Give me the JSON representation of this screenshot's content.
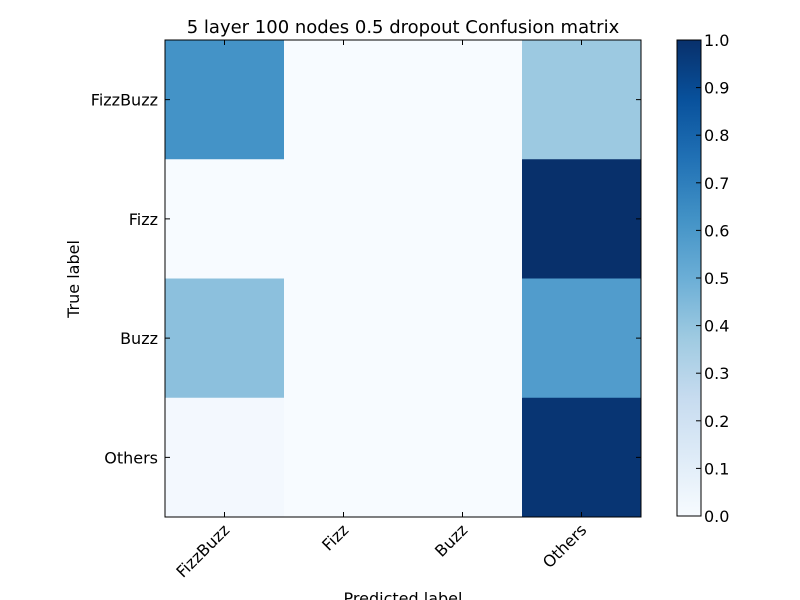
{
  "chart_data": {
    "type": "heatmap",
    "title": "5 layer 100 nodes 0.5 dropout Confusion matrix",
    "xlabel": "Predicted label",
    "ylabel": "True label",
    "x_categories": [
      "FizzBuzz",
      "Fizz",
      "Buzz",
      "Others"
    ],
    "y_categories": [
      "FizzBuzz",
      "Fizz",
      "Buzz",
      "Others"
    ],
    "values": [
      [
        0.62,
        0.0,
        0.0,
        0.38
      ],
      [
        0.0,
        0.0,
        0.0,
        1.0
      ],
      [
        0.42,
        0.0,
        0.0,
        0.58
      ],
      [
        0.02,
        0.0,
        0.0,
        0.98
      ]
    ],
    "colormap": "Blues",
    "colorbar": {
      "range": [
        0.0,
        1.0
      ],
      "ticks": [
        "0.0",
        "0.1",
        "0.2",
        "0.3",
        "0.4",
        "0.5",
        "0.6",
        "0.7",
        "0.8",
        "0.9",
        "1.0"
      ]
    }
  }
}
